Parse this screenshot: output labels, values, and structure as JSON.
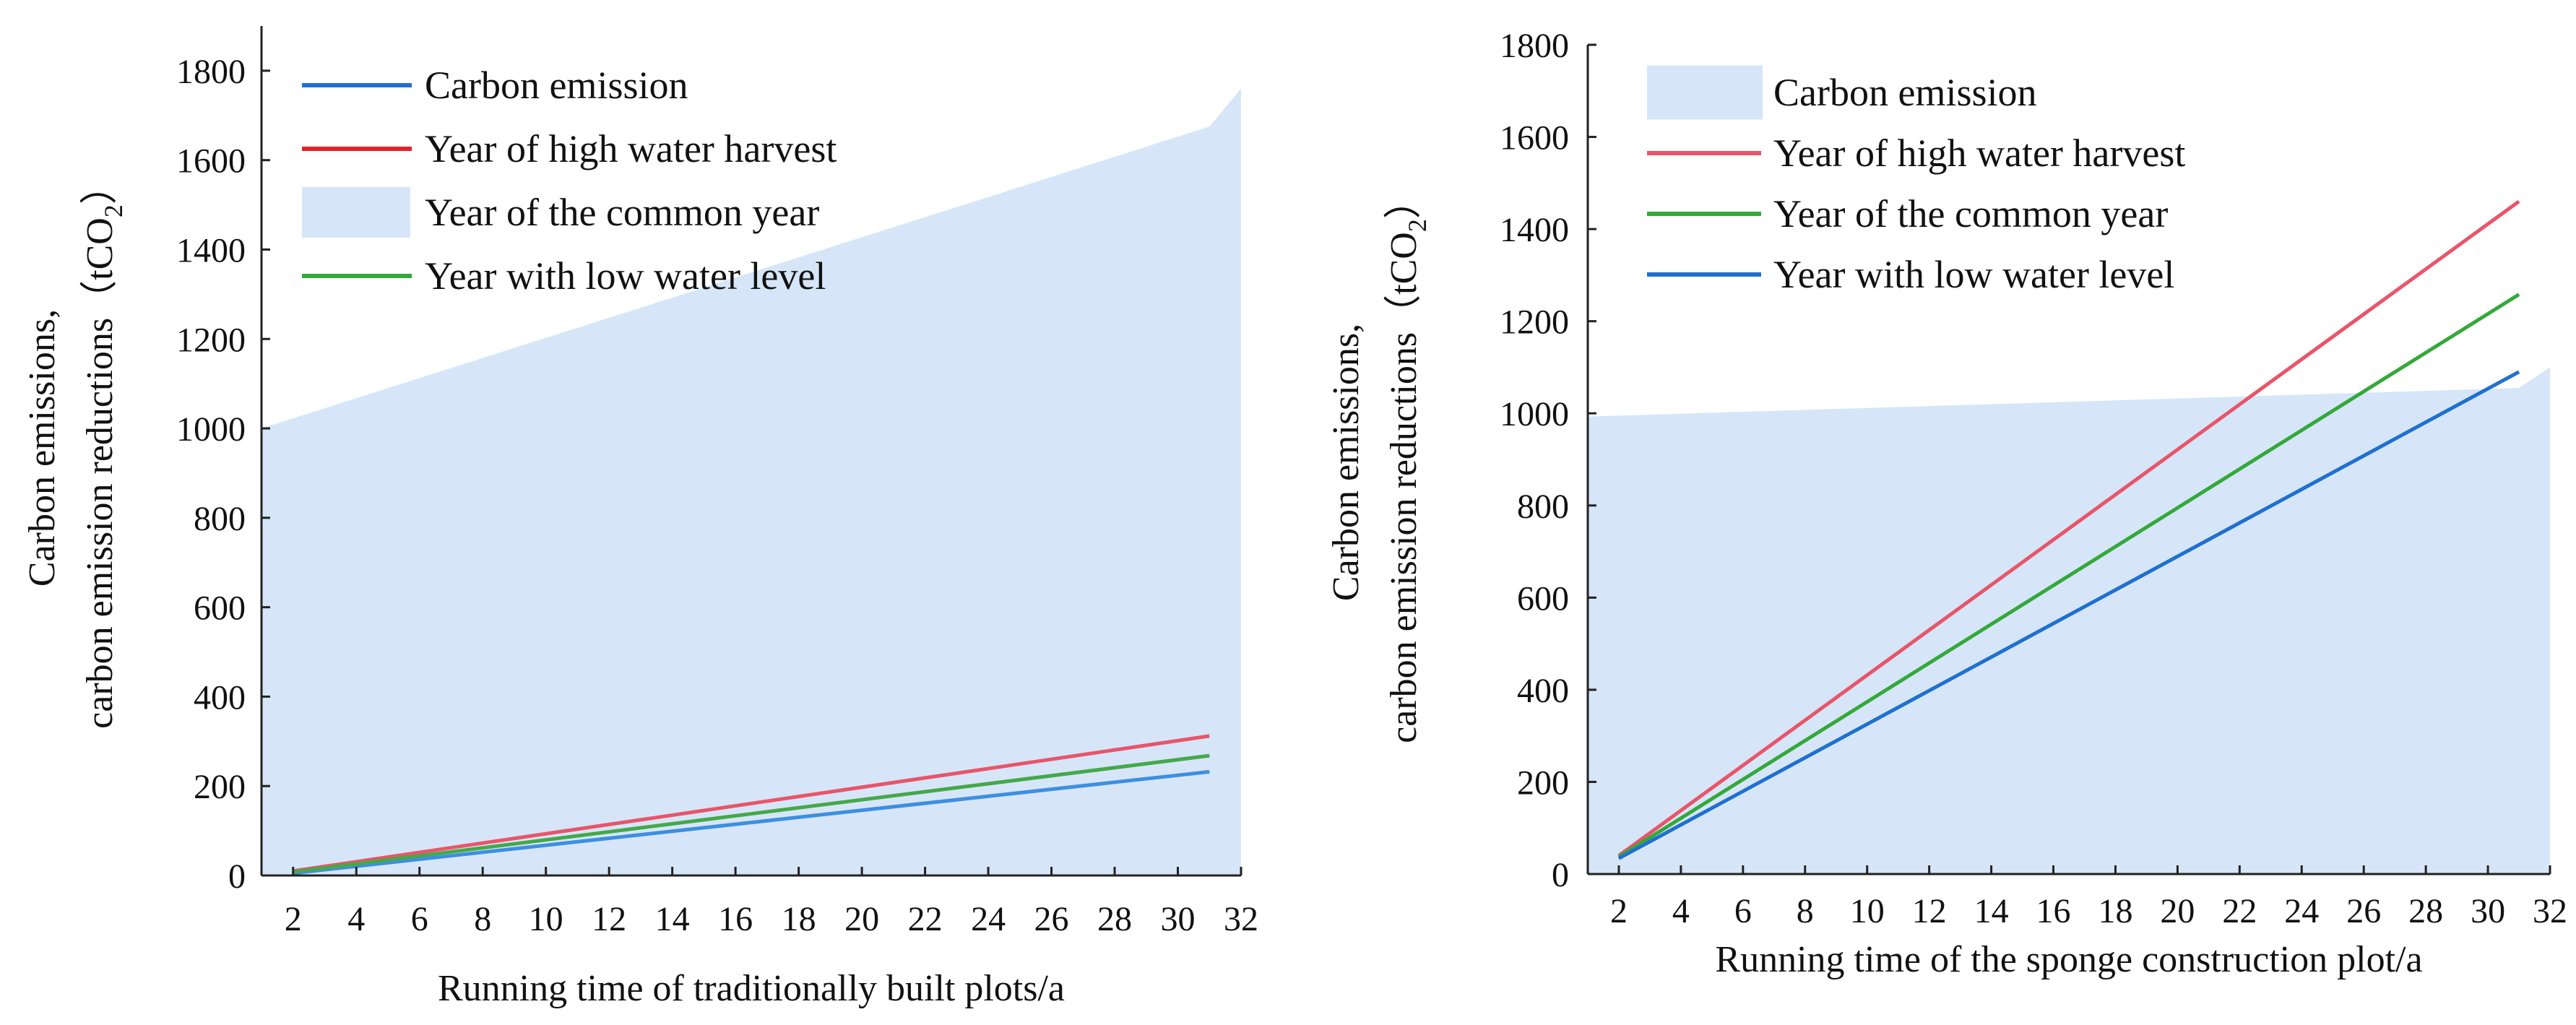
{
  "chart_data": [
    {
      "type": "line",
      "panel": "left",
      "title": "",
      "xlabel": "Running time of traditionally built plots/a",
      "ylabel": [
        "Carbon emissions,",
        "carbon emission reductions（tCO",
        "2",
        "）"
      ],
      "xlim": [
        1,
        32
      ],
      "ylim": [
        0,
        1900
      ],
      "xticks": [
        2,
        4,
        6,
        8,
        10,
        12,
        14,
        16,
        18,
        20,
        22,
        24,
        26,
        28,
        30,
        32
      ],
      "yticks": [
        0,
        200,
        400,
        600,
        800,
        1000,
        1200,
        1400,
        1600,
        1800
      ],
      "grid": false,
      "legend_position": "top-left",
      "area": {
        "name": "Year of the common year",
        "color": "#d6e6f8",
        "points": [
          [
            1,
            1000
          ],
          [
            31,
            1675
          ],
          [
            32,
            1760
          ]
        ]
      },
      "series": [
        {
          "name": "Carbon emission",
          "color": "#3d8fe0",
          "x": [
            2,
            31
          ],
          "y": [
            5,
            232
          ]
        },
        {
          "name": "Year of high water harvest",
          "color": "#e8556a",
          "x": [
            2,
            31
          ],
          "y": [
            10,
            312
          ]
        },
        {
          "name": "Year with low water level",
          "color": "#45a849",
          "x": [
            2,
            31
          ],
          "y": [
            8,
            268
          ]
        }
      ],
      "legend": [
        {
          "label": "Carbon emission",
          "kind": "line",
          "color": "#1f70d0"
        },
        {
          "label": "Year of high water harvest",
          "kind": "line",
          "color": "#e8202a"
        },
        {
          "label": "Year of the common year",
          "kind": "area",
          "color": "#d6e6f8"
        },
        {
          "label": "Year with low water level",
          "kind": "line",
          "color": "#34a83a"
        }
      ]
    },
    {
      "type": "line",
      "panel": "right",
      "title": "",
      "xlabel": "Running time of the sponge construction plot/a",
      "ylabel": [
        "Carbon emissions,",
        "carbon emission reductions（tCO",
        "2",
        "）"
      ],
      "xlim": [
        1,
        32
      ],
      "ylim": [
        0,
        1800
      ],
      "xticks": [
        2,
        4,
        6,
        8,
        10,
        12,
        14,
        16,
        18,
        20,
        22,
        24,
        26,
        28,
        30,
        32
      ],
      "yticks": [
        0,
        200,
        400,
        600,
        800,
        1000,
        1200,
        1400,
        1600,
        1800
      ],
      "grid": false,
      "legend_position": "top-left",
      "area": {
        "name": "Carbon emission",
        "color": "#d6e6f8",
        "points": [
          [
            1,
            993
          ],
          [
            31,
            1055
          ],
          [
            32,
            1100
          ]
        ]
      },
      "series": [
        {
          "name": "Year of high water harvest",
          "color": "#e8556a",
          "x": [
            2,
            31
          ],
          "y": [
            40,
            1460
          ]
        },
        {
          "name": "Year of the common year",
          "color": "#34a83a",
          "x": [
            2,
            31
          ],
          "y": [
            37,
            1258
          ]
        },
        {
          "name": "Year with low water level",
          "color": "#1f70d0",
          "x": [
            2,
            31
          ],
          "y": [
            34,
            1090
          ]
        }
      ],
      "legend": [
        {
          "label": "Carbon emission",
          "kind": "area",
          "color": "#d6e6f8"
        },
        {
          "label": "Year of high water harvest",
          "kind": "line",
          "color": "#e8556a"
        },
        {
          "label": "Year of the common year",
          "kind": "line",
          "color": "#34a83a"
        },
        {
          "label": "Year with low water level",
          "kind": "line",
          "color": "#1f70d0"
        }
      ]
    }
  ]
}
